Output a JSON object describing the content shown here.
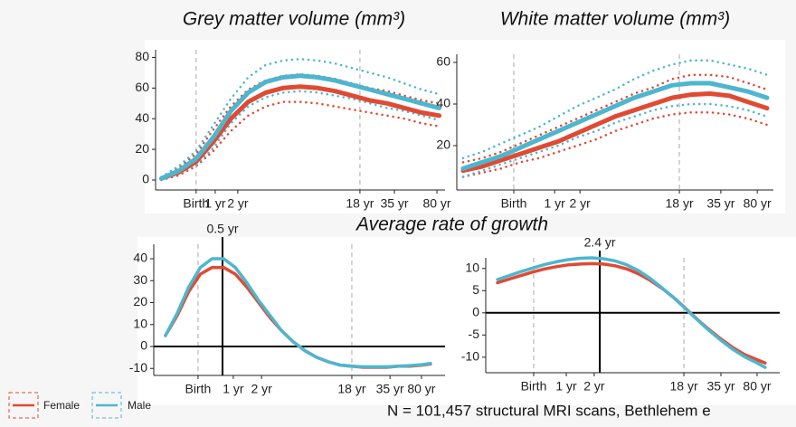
{
  "section_title": "Average rate of growth",
  "footnote": "N = 101,457 structural MRI scans, Bethlehem e",
  "chart_data": [
    {
      "type": "line",
      "title": "Grey matter volume (mm³)",
      "x": [
        2,
        8,
        14,
        20,
        26,
        32,
        38,
        44,
        50,
        56,
        62,
        68,
        74,
        80,
        86,
        92,
        98
      ],
      "xlim": [
        0,
        100
      ],
      "ylim": [
        -6.5,
        85
      ],
      "xticks": [
        {
          "value": 14,
          "label": "Birth"
        },
        {
          "value": 20.6,
          "label": "1 yr"
        },
        {
          "value": 28.4,
          "label": "2 yr"
        },
        {
          "value": 70.6,
          "label": "18 yr"
        },
        {
          "value": 82.5,
          "label": "35 yr"
        },
        {
          "value": 97.2,
          "label": "80 yr"
        }
      ],
      "yticks": [
        0,
        20,
        40,
        60,
        80
      ],
      "ref_lines": [
        14,
        70.6
      ],
      "series": [
        {
          "name": "Female",
          "color": "#e04a33",
          "values": [
            1,
            5,
            12,
            25,
            40,
            51,
            57,
            60,
            61,
            60,
            58,
            55,
            52,
            50,
            47,
            44,
            42
          ],
          "upper": [
            2,
            8,
            17,
            33,
            48,
            59,
            65,
            68,
            69,
            68,
            66,
            63,
            60,
            58,
            55,
            52,
            50
          ],
          "lower": [
            0,
            3,
            9,
            19,
            32,
            42,
            48,
            51,
            51,
            50,
            48,
            46,
            44,
            42,
            40,
            37,
            35
          ]
        },
        {
          "name": "Male",
          "color": "#4db6cf",
          "values": [
            1,
            6,
            14,
            28,
            45,
            57,
            64,
            67,
            68,
            67,
            65,
            62,
            59,
            56,
            53,
            50,
            47
          ],
          "upper": [
            2,
            9,
            19,
            36,
            53,
            67,
            75,
            78,
            79,
            78,
            76,
            73,
            70,
            67,
            63,
            59,
            56
          ],
          "lower": [
            0,
            4,
            10,
            21,
            37,
            48,
            54,
            57,
            58,
            57,
            55,
            53,
            50,
            47,
            45,
            42,
            39
          ]
        }
      ]
    },
    {
      "type": "line",
      "title": "White matter volume (mm³)",
      "x": [
        2,
        8,
        14,
        20,
        26,
        32,
        38,
        44,
        50,
        56,
        62,
        68,
        74,
        80,
        86,
        92,
        98
      ],
      "xlim": [
        0,
        100
      ],
      "ylim": [
        -1.3,
        63.9
      ],
      "xticks": [
        {
          "value": 18,
          "label": "Birth"
        },
        {
          "value": 30.9,
          "label": "1 yr"
        },
        {
          "value": 38.9,
          "label": "2 yr"
        },
        {
          "value": 70.3,
          "label": "18 yr"
        },
        {
          "value": 83.4,
          "label": "35 yr"
        },
        {
          "value": 94.9,
          "label": "80 yr"
        }
      ],
      "yticks": [
        20,
        40,
        60
      ],
      "ref_lines": [
        18,
        70.3
      ],
      "series": [
        {
          "name": "Female",
          "color": "#e04a33",
          "values": [
            8,
            10,
            13,
            16,
            19,
            22,
            26,
            30,
            34,
            37,
            40,
            43,
            44.5,
            45,
            44,
            41,
            38
          ],
          "upper": [
            12,
            14,
            17,
            21,
            25,
            29,
            33,
            37,
            41,
            45,
            48,
            52,
            54,
            54,
            53,
            50,
            47
          ],
          "lower": [
            5,
            7,
            9,
            12,
            14,
            17,
            20,
            23,
            27,
            30,
            33,
            35,
            36,
            36,
            35,
            33,
            30
          ]
        },
        {
          "name": "Male",
          "color": "#4db6cf",
          "values": [
            9,
            12,
            15,
            19,
            23,
            27,
            31,
            35,
            39,
            43,
            46,
            49,
            50,
            50,
            48,
            46,
            43
          ],
          "upper": [
            14,
            17,
            21,
            25,
            29,
            34,
            39,
            43,
            47,
            52,
            56,
            59,
            61,
            61,
            59,
            57,
            54
          ],
          "lower": [
            5,
            8,
            11,
            14,
            17,
            20,
            24,
            27,
            31,
            34,
            37,
            39,
            40,
            40,
            39,
            37,
            34
          ]
        }
      ]
    },
    {
      "type": "line",
      "x": [
        4,
        8,
        12,
        16,
        20,
        24,
        28,
        32,
        36,
        40,
        44,
        48,
        52,
        56,
        60,
        64,
        68,
        72,
        76,
        80,
        84,
        88,
        92,
        95
      ],
      "xlim": [
        0,
        100
      ],
      "ylim": [
        -13.2,
        46.6
      ],
      "xticks": [
        {
          "value": 15.2,
          "label": "Birth"
        },
        {
          "value": 27.3,
          "label": "1 yr"
        },
        {
          "value": 37,
          "label": "2 yr"
        },
        {
          "value": 68,
          "label": "18 yr"
        },
        {
          "value": 81.1,
          "label": "35 yr"
        },
        {
          "value": 91.9,
          "label": "80 yr"
        }
      ],
      "yticks": [
        -10,
        0,
        10,
        20,
        30,
        40
      ],
      "ref_lines": [
        15.2,
        68
      ],
      "hline": 0,
      "peak": {
        "x": 23.6,
        "label": "0.5 yr"
      },
      "series": [
        {
          "name": "Female",
          "color": "#e04a33",
          "values": [
            5,
            14,
            25,
            33,
            36,
            36,
            33,
            27,
            20,
            13,
            7,
            2,
            -2,
            -5,
            -7,
            -8.5,
            -9,
            -9.5,
            -9.5,
            -9.5,
            -9,
            -9,
            -8.5,
            -8
          ]
        },
        {
          "name": "Male",
          "color": "#4db6cf",
          "values": [
            5,
            15,
            27,
            36,
            40,
            40,
            36,
            29,
            21,
            14,
            7,
            2,
            -2,
            -5,
            -7,
            -8.5,
            -9,
            -9.3,
            -9.3,
            -9.3,
            -9,
            -8.7,
            -8.3,
            -7.7
          ]
        }
      ]
    },
    {
      "type": "line",
      "x": [
        4,
        8,
        12,
        16,
        20,
        24,
        28,
        32,
        36,
        40,
        44,
        48,
        52,
        56,
        60,
        64,
        68,
        72,
        76,
        80,
        84,
        88,
        92,
        95
      ],
      "xlim": [
        0,
        100
      ],
      "ylim": [
        -13.5,
        12.4
      ],
      "xticks": [
        {
          "value": 16.3,
          "label": "Birth"
        },
        {
          "value": 27.4,
          "label": "1 yr"
        },
        {
          "value": 36.9,
          "label": "2 yr"
        },
        {
          "value": 67.4,
          "label": "18 yr"
        },
        {
          "value": 80,
          "label": "35 yr"
        },
        {
          "value": 92.3,
          "label": "80 yr"
        }
      ],
      "yticks": [
        -10,
        -5,
        0,
        5,
        10
      ],
      "ref_lines": [
        16.3,
        67.4
      ],
      "hline": 0,
      "peak": {
        "x": 38.8,
        "label": "2.4 yr"
      },
      "series": [
        {
          "name": "Female",
          "color": "#e04a33",
          "values": [
            6.8,
            7.6,
            8.4,
            9.2,
            9.9,
            10.4,
            10.8,
            11,
            11.1,
            11,
            10.6,
            9.9,
            8.8,
            7.3,
            5.5,
            3.4,
            1,
            -1.5,
            -3.8,
            -5.9,
            -7.8,
            -9.4,
            -10.5,
            -11.3
          ]
        },
        {
          "name": "Male",
          "color": "#4db6cf",
          "values": [
            7.5,
            8.4,
            9.3,
            10.1,
            10.9,
            11.5,
            12,
            12.3,
            12.4,
            12.2,
            11.7,
            10.8,
            9.5,
            7.7,
            5.6,
            3.4,
            0.9,
            -1.6,
            -4,
            -6.2,
            -8.2,
            -9.9,
            -11.2,
            -12.3
          ]
        }
      ]
    }
  ]
}
